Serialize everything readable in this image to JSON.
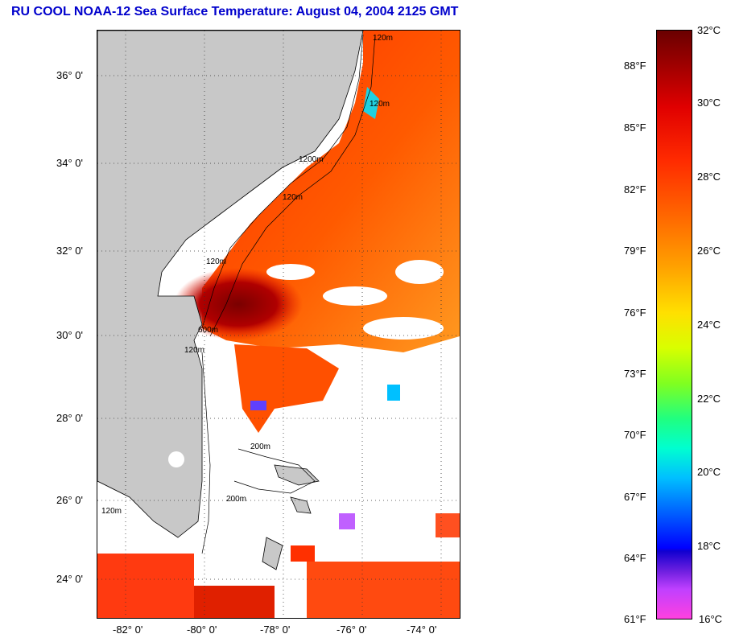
{
  "title": "RU COOL  NOAA-12  Sea Surface Temperature:  August 04, 2004 2125 GMT",
  "map": {
    "lat_labels": [
      "36° 0'",
      "34° 0'",
      "32° 0'",
      "30° 0'",
      "28° 0'",
      "26° 0'",
      "24° 0'"
    ],
    "lon_labels": [
      "-82° 0'",
      "-80° 0'",
      "-78° 0'",
      "-76° 0'",
      "-74° 0'"
    ],
    "contour_labels": [
      "120m",
      "120m",
      "1200m",
      "600m",
      "120m",
      "120m",
      "120m",
      "200m",
      "200m",
      "120m"
    ],
    "colors": {
      "land": "#c8c8c8",
      "cloud": "#ffffff",
      "warm_core": "#8b0000",
      "ocean_main": "#ff4a00"
    }
  },
  "colorbar": {
    "fahrenheit": [
      "88°F",
      "85°F",
      "82°F",
      "79°F",
      "76°F",
      "73°F",
      "70°F",
      "67°F",
      "64°F",
      "61°F"
    ],
    "celsius": [
      "32°C",
      "30°C",
      "28°C",
      "26°C",
      "24°C",
      "22°C",
      "20°C",
      "18°C",
      "16°C"
    ]
  }
}
